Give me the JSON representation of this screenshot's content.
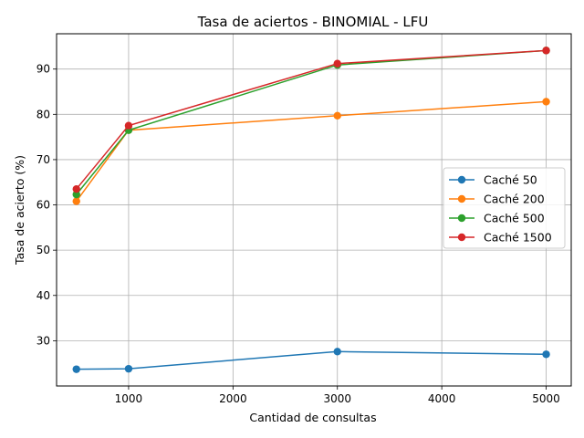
{
  "chart_data": {
    "type": "line",
    "title": "Tasa de aciertos - BINOMIAL - LFU",
    "xlabel": "Cantidad de consultas",
    "ylabel": "Tasa de acierto (%)",
    "x": [
      500,
      1000,
      3000,
      5000
    ],
    "xlim": [
      310,
      5240
    ],
    "ylim": [
      20,
      97.8
    ],
    "xticks": [
      1000,
      2000,
      3000,
      4000,
      5000
    ],
    "yticks": [
      30,
      40,
      50,
      60,
      70,
      80,
      90
    ],
    "grid": true,
    "legend_position": "center-right",
    "series": [
      {
        "name": "Caché 50",
        "color": "#1f77b4",
        "values": [
          23.7,
          23.8,
          27.6,
          27.0
        ]
      },
      {
        "name": "Caché 200",
        "color": "#ff7f0e",
        "values": [
          60.8,
          76.5,
          79.7,
          82.8
        ]
      },
      {
        "name": "Caché 500",
        "color": "#2ca02c",
        "values": [
          62.3,
          76.5,
          90.9,
          94.1
        ]
      },
      {
        "name": "Caché 1500",
        "color": "#d62728",
        "values": [
          63.5,
          77.5,
          91.2,
          94.1
        ]
      }
    ]
  }
}
